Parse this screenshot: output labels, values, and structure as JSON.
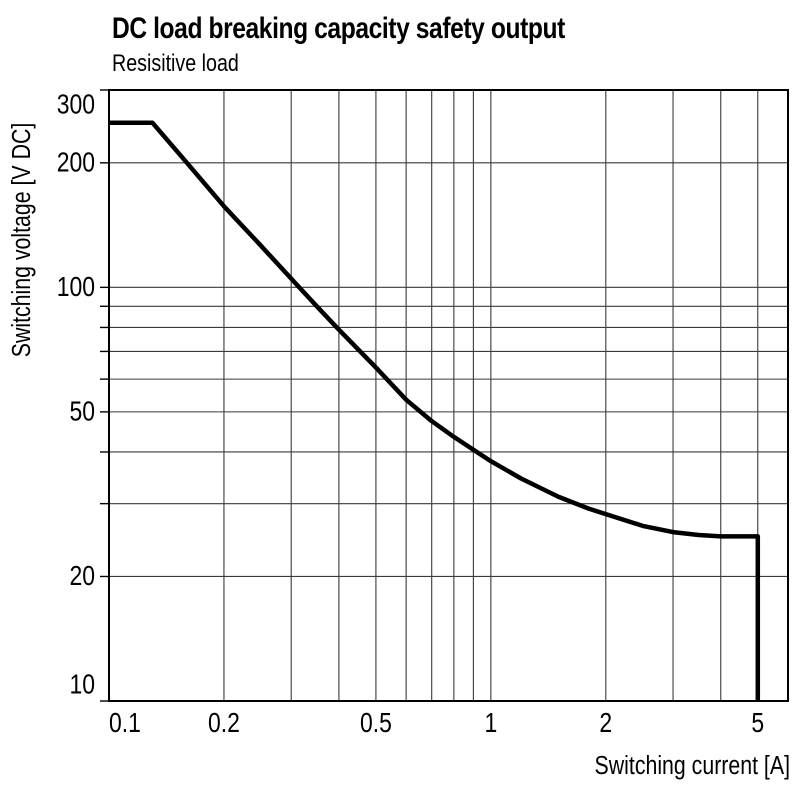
{
  "header": {
    "title": "DC load breaking capacity safety output",
    "subtitle": "Resisitive load"
  },
  "chart_data": {
    "type": "line",
    "title": "DC load breaking capacity safety output",
    "subtitle": "Resisitive load",
    "grid": true,
    "legend": false,
    "x_axis": {
      "label": "Switching current [A]",
      "scale": "log",
      "min": 0.1,
      "max": 6,
      "tick_labels": [
        {
          "value": 0.1,
          "label": "0.1"
        },
        {
          "value": 0.2,
          "label": "0.2"
        },
        {
          "value": 0.5,
          "label": "0.5"
        },
        {
          "value": 1,
          "label": "1"
        },
        {
          "value": 2,
          "label": "2"
        },
        {
          "value": 5,
          "label": "5"
        }
      ],
      "gridlines": [
        0.2,
        0.3,
        0.4,
        0.5,
        0.6,
        0.7,
        0.8,
        0.9,
        1,
        2,
        3,
        4,
        5
      ]
    },
    "y_axis": {
      "label": "Switching voltage [V DC]",
      "scale": "log",
      "min": 10,
      "max": 300,
      "tick_labels": [
        {
          "value": 300,
          "label": "300"
        },
        {
          "value": 200,
          "label": "200"
        },
        {
          "value": 100,
          "label": "100"
        },
        {
          "value": 50,
          "label": "50"
        },
        {
          "value": 20,
          "label": "20"
        },
        {
          "value": 10,
          "label": "10"
        }
      ],
      "gridlines": [
        20,
        30,
        40,
        50,
        60,
        70,
        80,
        90,
        100,
        200
      ],
      "tick_marks": [
        10,
        20,
        30,
        40,
        50,
        60,
        70,
        80,
        90,
        100,
        200,
        300
      ]
    },
    "series": [
      {
        "name": "DC load breaking capacity (resistive load)",
        "points": [
          [
            0.1,
            250
          ],
          [
            0.13,
            250
          ],
          [
            0.16,
            200
          ],
          [
            0.2,
            157
          ],
          [
            0.25,
            126
          ],
          [
            0.3,
            105
          ],
          [
            0.35,
            90
          ],
          [
            0.4,
            79
          ],
          [
            0.5,
            64
          ],
          [
            0.6,
            53.5
          ],
          [
            0.7,
            47.5
          ],
          [
            0.8,
            43.5
          ],
          [
            0.9,
            40.5
          ],
          [
            1.0,
            38
          ],
          [
            1.2,
            34.5
          ],
          [
            1.5,
            31.2
          ],
          [
            1.8,
            29.2
          ],
          [
            2.0,
            28.3
          ],
          [
            2.5,
            26.5
          ],
          [
            3.0,
            25.6
          ],
          [
            3.5,
            25.2
          ],
          [
            4.0,
            25
          ],
          [
            4.5,
            25
          ],
          [
            5.0,
            25
          ],
          [
            5.0,
            10
          ]
        ]
      }
    ]
  },
  "colors": {
    "background": "#ffffff",
    "text": "#000000",
    "grid": "#3a3a3a",
    "frame": "#000000",
    "curve": "#000000"
  }
}
